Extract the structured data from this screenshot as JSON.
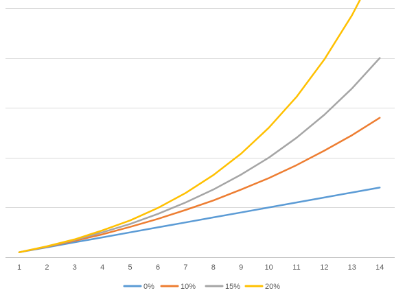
{
  "chart_data": {
    "type": "line",
    "title": "",
    "xlabel": "",
    "ylabel": "",
    "x": [
      1,
      2,
      3,
      4,
      5,
      6,
      7,
      8,
      9,
      10,
      11,
      12,
      13,
      14
    ],
    "ylim": [
      0,
      5
    ],
    "y_gridlines": [
      0,
      1,
      2,
      3,
      4,
      5
    ],
    "grid": true,
    "y_tick_labels_visible": false,
    "legend_position": "bottom",
    "series": [
      {
        "name": "0%",
        "color": "#5B9BD5",
        "values": [
          0.1,
          0.2,
          0.3,
          0.4,
          0.5,
          0.6,
          0.7,
          0.8,
          0.9,
          1.0,
          1.1,
          1.2,
          1.3,
          1.4
        ]
      },
      {
        "name": "10%",
        "color": "#ED7D31",
        "values": [
          0.1,
          0.21,
          0.33,
          0.46,
          0.61,
          0.77,
          0.95,
          1.14,
          1.36,
          1.59,
          1.85,
          2.14,
          2.45,
          2.8
        ]
      },
      {
        "name": "15%",
        "color": "#A5A5A5",
        "values": [
          0.1,
          0.215,
          0.35,
          0.5,
          0.67,
          0.87,
          1.1,
          1.36,
          1.66,
          2.0,
          2.4,
          2.86,
          3.39,
          4.0
        ]
      },
      {
        "name": "20%",
        "color": "#FFC000",
        "values": [
          0.1,
          0.22,
          0.36,
          0.54,
          0.74,
          0.99,
          1.29,
          1.65,
          2.08,
          2.6,
          3.22,
          3.97,
          4.86,
          5.93
        ]
      }
    ]
  }
}
